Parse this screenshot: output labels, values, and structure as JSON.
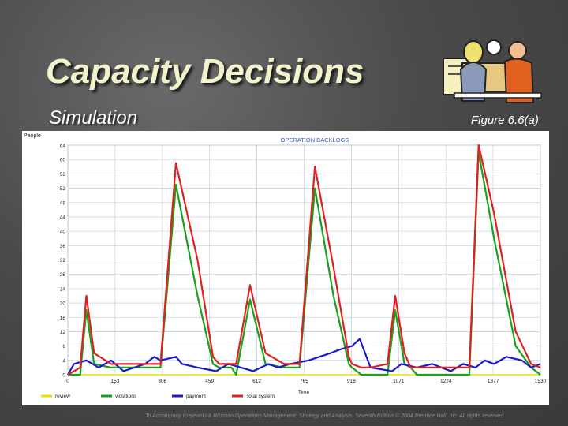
{
  "slide": {
    "title": "Capacity Decisions",
    "subtitle": "Simulation",
    "figure_ref": "Figure 6.6(a)",
    "footer": "To Accompany Krajewski & Ritzman Operations Management: Strategy and Analysis, Seventh Edition © 2004 Prentice Hall, Inc. All rights reserved.",
    "clipart_icon": "business-meeting-icon"
  },
  "colors": {
    "review": "#e8e000",
    "violations": "#1aa01a",
    "payment": "#1a1ad0",
    "total": "#e02020",
    "grid": "#c8d4e4",
    "title": "#3060c0"
  },
  "chart_data": {
    "type": "line",
    "title": "OPERATION BACKLOGS",
    "ylabel": "People",
    "xlabel": "Time",
    "xlim": [
      0,
      1530
    ],
    "ylim": [
      0,
      64
    ],
    "xticks": [
      0,
      153,
      306,
      459,
      612,
      765,
      918,
      1071,
      1224,
      1377,
      1530
    ],
    "yticks": [
      0,
      4,
      8,
      12,
      16,
      20,
      24,
      28,
      32,
      36,
      40,
      44,
      48,
      52,
      56,
      60,
      64
    ],
    "legend_position": "bottom",
    "series": [
      {
        "name": "review",
        "key": "review",
        "x": [
          0,
          1530
        ],
        "y": [
          0,
          0
        ]
      },
      {
        "name": "violations",
        "key": "violations",
        "x": [
          0,
          40,
          60,
          85,
          140,
          300,
          350,
          420,
          470,
          490,
          530,
          545,
          590,
          640,
          700,
          750,
          800,
          860,
          910,
          920,
          950,
          980,
          1035,
          1060,
          1090,
          1110,
          1130,
          1150,
          1180,
          1210,
          1240,
          1300,
          1330,
          1380,
          1450,
          1500,
          1530
        ],
        "y": [
          0,
          0,
          18,
          3,
          2,
          2,
          53,
          22,
          3,
          2,
          2,
          0,
          21,
          3,
          2,
          2,
          52,
          22,
          3,
          2,
          0,
          0,
          0,
          18,
          3,
          2,
          0,
          0,
          0,
          0,
          0,
          0,
          62,
          38,
          8,
          2,
          0
        ]
      },
      {
        "name": "payment",
        "key": "payment",
        "x": [
          0,
          20,
          60,
          100,
          140,
          180,
          250,
          280,
          300,
          350,
          370,
          420,
          480,
          520,
          600,
          650,
          680,
          720,
          780,
          850,
          880,
          920,
          945,
          980,
          1050,
          1080,
          1130,
          1180,
          1240,
          1280,
          1320,
          1350,
          1380,
          1420,
          1470,
          1500,
          1530
        ],
        "y": [
          0,
          3,
          4,
          2,
          4,
          1,
          3,
          5,
          4,
          5,
          3,
          2,
          1,
          3,
          1,
          3,
          2,
          3,
          4,
          6,
          7,
          8,
          10,
          2,
          1,
          3,
          2,
          3,
          1,
          3,
          2,
          4,
          3,
          5,
          4,
          2,
          3
        ]
      },
      {
        "name": "Total system",
        "key": "total",
        "x": [
          0,
          40,
          60,
          85,
          140,
          300,
          350,
          420,
          470,
          490,
          530,
          545,
          590,
          640,
          700,
          750,
          800,
          860,
          910,
          920,
          950,
          980,
          1035,
          1060,
          1090,
          1110,
          1130,
          1150,
          1180,
          1210,
          1240,
          1300,
          1330,
          1380,
          1450,
          1500,
          1530
        ],
        "y": [
          0,
          2,
          22,
          6,
          3,
          3,
          59,
          32,
          5,
          3,
          3,
          3,
          25,
          6,
          3,
          3,
          58,
          30,
          5,
          3,
          2,
          2,
          3,
          22,
          6,
          2,
          2,
          2,
          2,
          2,
          2,
          2,
          64,
          45,
          12,
          3,
          2
        ]
      }
    ]
  }
}
